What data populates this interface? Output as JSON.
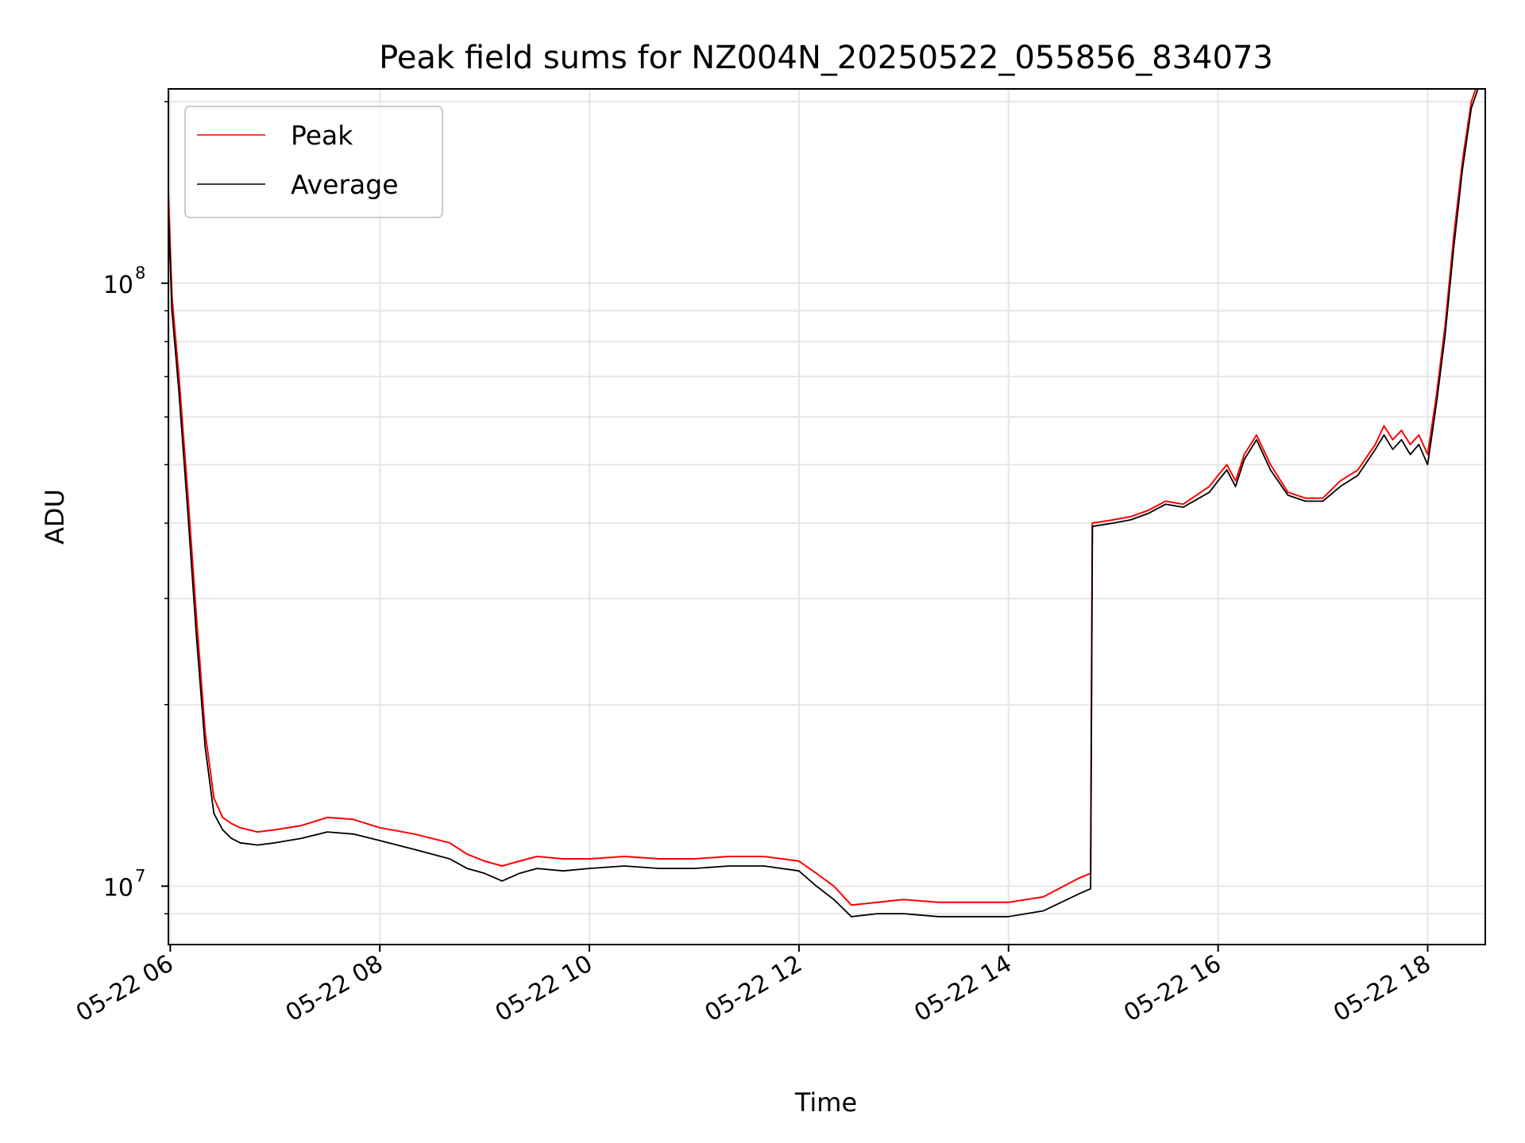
{
  "chart_data": {
    "type": "line",
    "title": "Peak field sums for NZ004N_20250522_055856_834073",
    "xlabel": "Time",
    "ylabel": "ADU",
    "yscale": "log",
    "ylim": [
      8000000,
      210000000
    ],
    "xlim": [
      "2025-05-22T05:58:56",
      "2025-05-22T18:33:00"
    ],
    "x_ticks": [
      {
        "t": "2025-05-22T06:00",
        "label": "05-22 06"
      },
      {
        "t": "2025-05-22T08:00",
        "label": "05-22 08"
      },
      {
        "t": "2025-05-22T10:00",
        "label": "05-22 10"
      },
      {
        "t": "2025-05-22T12:00",
        "label": "05-22 12"
      },
      {
        "t": "2025-05-22T14:00",
        "label": "05-22 14"
      },
      {
        "t": "2025-05-22T16:00",
        "label": "05-22 16"
      },
      {
        "t": "2025-05-22T18:00",
        "label": "05-22 18"
      }
    ],
    "y_major_ticks": [
      {
        "v": 10000000,
        "base": "10",
        "exp": "7"
      },
      {
        "v": 100000000,
        "base": "10",
        "exp": "8"
      }
    ],
    "y_minor_ticks": [
      9000000,
      20000000,
      30000000,
      40000000,
      50000000,
      60000000,
      70000000,
      80000000,
      90000000,
      200000000
    ],
    "grid": true,
    "legend_position": "top-left",
    "series": [
      {
        "name": "Peak",
        "color": "#ff0000",
        "x": [
          "2025-05-22T05:59",
          "2025-05-22T06:01",
          "2025-05-22T06:05",
          "2025-05-22T06:10",
          "2025-05-22T06:15",
          "2025-05-22T06:20",
          "2025-05-22T06:25",
          "2025-05-22T06:30",
          "2025-05-22T06:35",
          "2025-05-22T06:40",
          "2025-05-22T06:50",
          "2025-05-22T07:00",
          "2025-05-22T07:15",
          "2025-05-22T07:30",
          "2025-05-22T07:45",
          "2025-05-22T08:00",
          "2025-05-22T08:20",
          "2025-05-22T08:40",
          "2025-05-22T08:50",
          "2025-05-22T09:00",
          "2025-05-22T09:10",
          "2025-05-22T09:20",
          "2025-05-22T09:30",
          "2025-05-22T09:45",
          "2025-05-22T10:00",
          "2025-05-22T10:20",
          "2025-05-22T10:40",
          "2025-05-22T11:00",
          "2025-05-22T11:20",
          "2025-05-22T11:40",
          "2025-05-22T12:00",
          "2025-05-22T12:10",
          "2025-05-22T12:20",
          "2025-05-22T12:30",
          "2025-05-22T12:45",
          "2025-05-22T13:00",
          "2025-05-22T13:20",
          "2025-05-22T13:40",
          "2025-05-22T14:00",
          "2025-05-22T14:20",
          "2025-05-22T14:40",
          "2025-05-22T14:47",
          "2025-05-22T14:48",
          "2025-05-22T15:00",
          "2025-05-22T15:10",
          "2025-05-22T15:20",
          "2025-05-22T15:30",
          "2025-05-22T15:40",
          "2025-05-22T15:55",
          "2025-05-22T16:00",
          "2025-05-22T16:05",
          "2025-05-22T16:10",
          "2025-05-22T16:15",
          "2025-05-22T16:22",
          "2025-05-22T16:30",
          "2025-05-22T16:40",
          "2025-05-22T16:50",
          "2025-05-22T17:00",
          "2025-05-22T17:10",
          "2025-05-22T17:20",
          "2025-05-22T17:30",
          "2025-05-22T17:35",
          "2025-05-22T17:40",
          "2025-05-22T17:45",
          "2025-05-22T17:50",
          "2025-05-22T17:55",
          "2025-05-22T18:00",
          "2025-05-22T18:05",
          "2025-05-22T18:10",
          "2025-05-22T18:15",
          "2025-05-22T18:20",
          "2025-05-22T18:25",
          "2025-05-22T18:30",
          "2025-05-22T18:32"
        ],
        "values": [
          140000000,
          95000000,
          70000000,
          45000000,
          28000000,
          18000000,
          14000000,
          13000000,
          12700000,
          12500000,
          12300000,
          12400000,
          12600000,
          13000000,
          12900000,
          12500000,
          12200000,
          11800000,
          11300000,
          11000000,
          10800000,
          11000000,
          11200000,
          11100000,
          11100000,
          11200000,
          11100000,
          11100000,
          11200000,
          11200000,
          11000000,
          10500000,
          10000000,
          9300000,
          9400000,
          9500000,
          9400000,
          9400000,
          9400000,
          9600000,
          10300000,
          10500000,
          40000000,
          40500000,
          41000000,
          42000000,
          43500000,
          43000000,
          46000000,
          48000000,
          50000000,
          47000000,
          52000000,
          56000000,
          50000000,
          45000000,
          44000000,
          44000000,
          47000000,
          49000000,
          54000000,
          58000000,
          55000000,
          57000000,
          54000000,
          56000000,
          52000000,
          65000000,
          85000000,
          120000000,
          160000000,
          200000000,
          220000000,
          230000000
        ]
      },
      {
        "name": "Average",
        "color": "#000000",
        "x": [
          "2025-05-22T05:59",
          "2025-05-22T06:01",
          "2025-05-22T06:05",
          "2025-05-22T06:10",
          "2025-05-22T06:15",
          "2025-05-22T06:20",
          "2025-05-22T06:25",
          "2025-05-22T06:30",
          "2025-05-22T06:35",
          "2025-05-22T06:40",
          "2025-05-22T06:50",
          "2025-05-22T07:00",
          "2025-05-22T07:15",
          "2025-05-22T07:30",
          "2025-05-22T07:45",
          "2025-05-22T08:00",
          "2025-05-22T08:20",
          "2025-05-22T08:40",
          "2025-05-22T08:50",
          "2025-05-22T09:00",
          "2025-05-22T09:10",
          "2025-05-22T09:20",
          "2025-05-22T09:30",
          "2025-05-22T09:45",
          "2025-05-22T10:00",
          "2025-05-22T10:20",
          "2025-05-22T10:40",
          "2025-05-22T11:00",
          "2025-05-22T11:20",
          "2025-05-22T11:40",
          "2025-05-22T12:00",
          "2025-05-22T12:10",
          "2025-05-22T12:20",
          "2025-05-22T12:30",
          "2025-05-22T12:45",
          "2025-05-22T13:00",
          "2025-05-22T13:20",
          "2025-05-22T13:40",
          "2025-05-22T14:00",
          "2025-05-22T14:20",
          "2025-05-22T14:40",
          "2025-05-22T14:47",
          "2025-05-22T14:48",
          "2025-05-22T15:00",
          "2025-05-22T15:10",
          "2025-05-22T15:20",
          "2025-05-22T15:30",
          "2025-05-22T15:40",
          "2025-05-22T15:55",
          "2025-05-22T16:00",
          "2025-05-22T16:05",
          "2025-05-22T16:10",
          "2025-05-22T16:15",
          "2025-05-22T16:22",
          "2025-05-22T16:30",
          "2025-05-22T16:40",
          "2025-05-22T16:50",
          "2025-05-22T17:00",
          "2025-05-22T17:10",
          "2025-05-22T17:20",
          "2025-05-22T17:30",
          "2025-05-22T17:35",
          "2025-05-22T17:40",
          "2025-05-22T17:45",
          "2025-05-22T17:50",
          "2025-05-22T17:55",
          "2025-05-22T18:00",
          "2025-05-22T18:05",
          "2025-05-22T18:10",
          "2025-05-22T18:15",
          "2025-05-22T18:20",
          "2025-05-22T18:25",
          "2025-05-22T18:30",
          "2025-05-22T18:32"
        ],
        "values": [
          130000000,
          90000000,
          66000000,
          42000000,
          26000000,
          17000000,
          13200000,
          12400000,
          12000000,
          11800000,
          11700000,
          11800000,
          12000000,
          12300000,
          12200000,
          11900000,
          11500000,
          11100000,
          10700000,
          10500000,
          10200000,
          10500000,
          10700000,
          10600000,
          10700000,
          10800000,
          10700000,
          10700000,
          10800000,
          10800000,
          10600000,
          10000000,
          9500000,
          8900000,
          9000000,
          9000000,
          8900000,
          8900000,
          8900000,
          9100000,
          9700000,
          9900000,
          39500000,
          40000000,
          40500000,
          41500000,
          43000000,
          42500000,
          45000000,
          47000000,
          49000000,
          46000000,
          51000000,
          55000000,
          49000000,
          44500000,
          43500000,
          43500000,
          46000000,
          48000000,
          53000000,
          56000000,
          53000000,
          55000000,
          52000000,
          54000000,
          50000000,
          63000000,
          82000000,
          115000000,
          155000000,
          195000000,
          215000000,
          225000000
        ]
      }
    ]
  }
}
